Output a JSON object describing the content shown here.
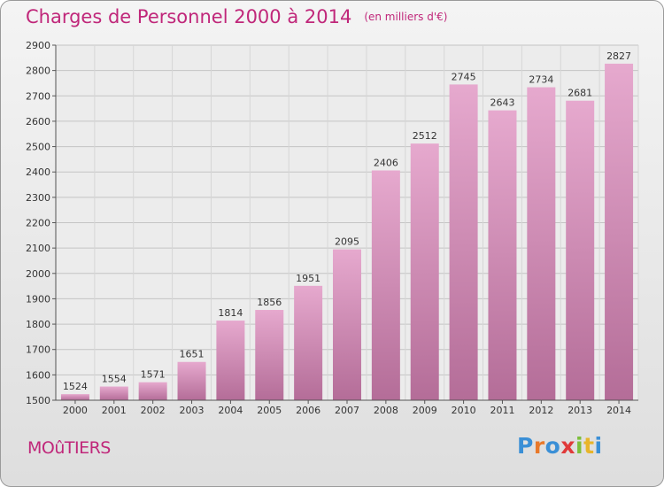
{
  "header": {
    "title": "Charges de Personnel 2000 à 2014",
    "unit_note": "(en milliers d'€)"
  },
  "footer": {
    "city": "MOûTIERS",
    "logo_text": "Proxiti",
    "logo_colors": [
      "#3a8fd6",
      "#e8792a",
      "#3a8fd6",
      "#e03a3a",
      "#7cbf3b",
      "#e8b52a",
      "#3a8fd6"
    ]
  },
  "colors": {
    "title": "#c0277a",
    "bar_top": "#e6a9ce",
    "bar_bottom": "#b46d98"
  },
  "chart_data": {
    "type": "bar",
    "categories": [
      "2000",
      "2001",
      "2002",
      "2003",
      "2004",
      "2005",
      "2006",
      "2007",
      "2008",
      "2009",
      "2010",
      "2011",
      "2012",
      "2013",
      "2014"
    ],
    "values": [
      1524,
      1554,
      1571,
      1651,
      1814,
      1856,
      1951,
      2095,
      2406,
      2512,
      2745,
      2643,
      2734,
      2681,
      2827
    ],
    "title": "Charges de Personnel 2000 à 2014",
    "xlabel": "",
    "ylabel": "",
    "ylim": [
      1500,
      2900
    ],
    "yticks": [
      1500,
      1600,
      1700,
      1800,
      1900,
      2000,
      2100,
      2200,
      2300,
      2400,
      2500,
      2600,
      2700,
      2800,
      2900
    ],
    "grid": true,
    "legend": "none"
  }
}
